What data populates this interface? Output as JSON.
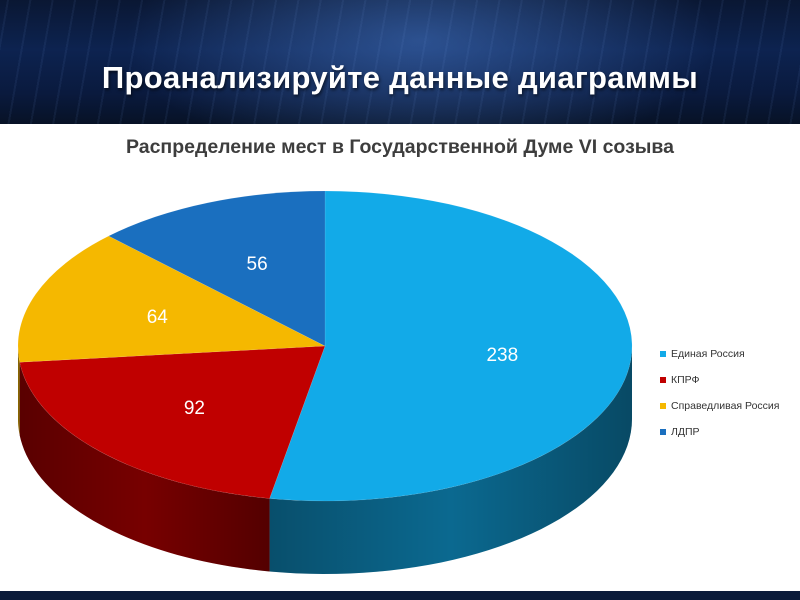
{
  "slide_title": "Проанализируйте данные диаграммы",
  "chart_data": {
    "type": "pie",
    "title": "Распределение мест в Государственной Думе VI созыва",
    "categories": [
      "Единая Россия",
      "КПРФ",
      "Справедливая Россия",
      "ЛДПР"
    ],
    "values": [
      238,
      92,
      64,
      56
    ],
    "data_labels": [
      "238",
      "92",
      "64",
      "56"
    ],
    "colors": [
      "#12aae8",
      "#c00000",
      "#f5b800",
      "#1a6fbf"
    ],
    "style": "3d",
    "legend_position": "right"
  }
}
